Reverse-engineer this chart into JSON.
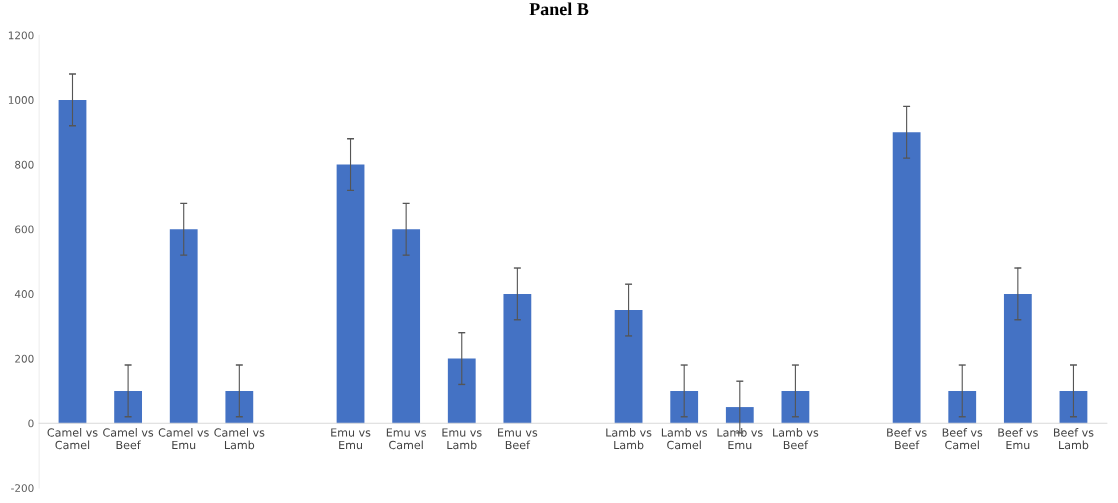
{
  "chart_data": {
    "type": "bar",
    "title": "Panel B",
    "categories": [
      "Camel vs\nCamel",
      "Camel vs\nBeef",
      "Camel vs\nEmu",
      "Camel vs\nLamb",
      null,
      "Emu vs\nEmu",
      "Emu vs\nCamel",
      "Emu vs\nLamb",
      "Emu vs\nBeef",
      null,
      "Lamb vs\nLamb",
      "Lamb vs\nCamel",
      "Lamb vs\nEmu",
      "Lamb vs\nBeef",
      null,
      "Beef vs\nBeef",
      "Beef vs\nCamel",
      "Beef vs\nEmu",
      "Beef vs\nLamb"
    ],
    "values": [
      1000,
      100,
      600,
      100,
      null,
      800,
      600,
      200,
      400,
      null,
      350,
      100,
      50,
      100,
      null,
      900,
      100,
      400,
      100
    ],
    "errors": [
      80,
      80,
      80,
      80,
      null,
      80,
      80,
      80,
      80,
      null,
      80,
      80,
      80,
      80,
      null,
      80,
      80,
      80,
      80
    ],
    "color": "#4472c4",
    "ylim": [
      -200,
      1200
    ],
    "yticks": [
      -200,
      0,
      200,
      400,
      600,
      800,
      1000,
      1200
    ],
    "grid": false,
    "legend": false
  }
}
